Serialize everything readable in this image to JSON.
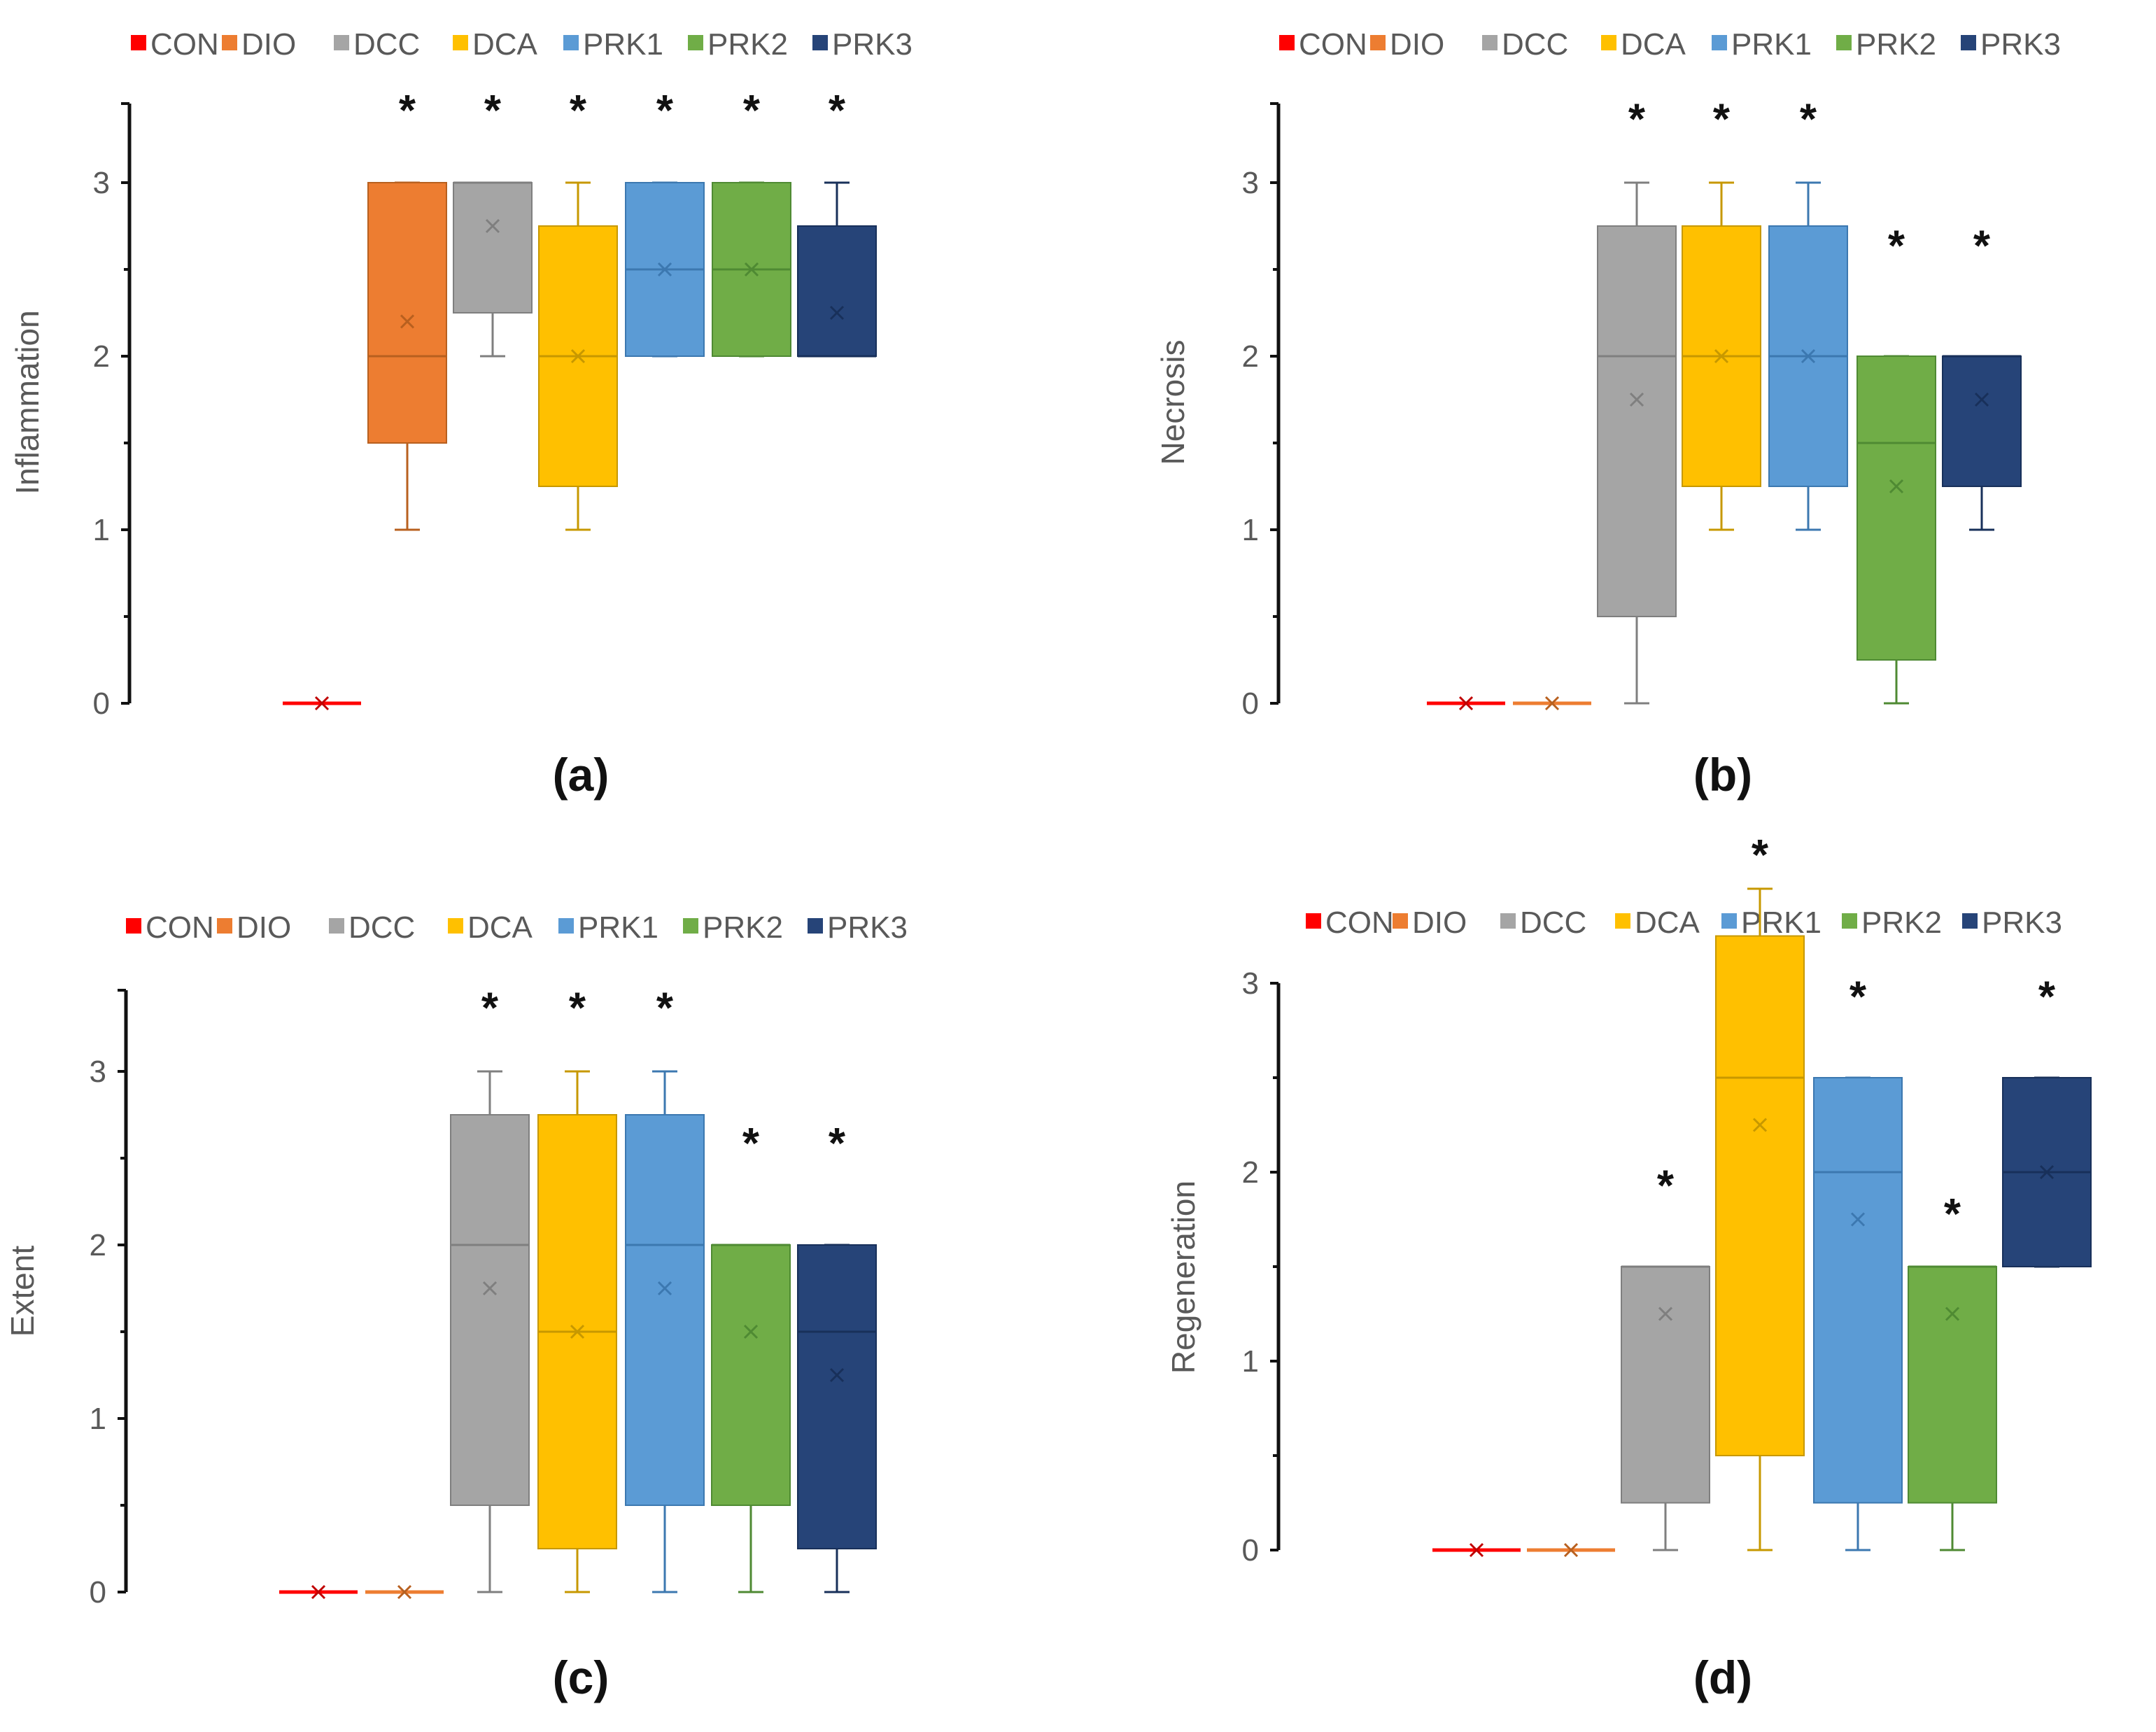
{
  "legend": {
    "groups": [
      "CON",
      "DIO",
      "DCC",
      "DCA",
      "PRK1",
      "PRK2",
      "PRK3"
    ],
    "colors": [
      "#ff0000",
      "#ed7d31",
      "#a5a5a5",
      "#ffc000",
      "#5b9bd5",
      "#70ad47",
      "#264478"
    ]
  },
  "chart_data": [
    {
      "type": "box",
      "panel": "(a)",
      "ylabel": "Inflammation",
      "ylim": [
        0,
        3.5
      ],
      "yticks": [
        0,
        1,
        2,
        3
      ],
      "categories": [
        "CON",
        "DIO",
        "DCC",
        "DCA",
        "PRK1",
        "PRK2",
        "PRK3"
      ],
      "boxes": [
        {
          "group": "CON",
          "min": 0,
          "q1": 0,
          "median": 0,
          "q3": 0,
          "max": 0,
          "mean": 0
        },
        {
          "group": "DIO",
          "min": 1,
          "q1": 1.5,
          "median": 2,
          "q3": 3,
          "max": 3,
          "mean": 2.2
        },
        {
          "group": "DCC",
          "min": 2,
          "q1": 2.25,
          "median": 3,
          "q3": 3,
          "max": 3,
          "mean": 2.75
        },
        {
          "group": "DCA",
          "min": 1,
          "q1": 1.25,
          "median": 2,
          "q3": 2.75,
          "max": 3,
          "mean": 2.0
        },
        {
          "group": "PRK1",
          "min": 2,
          "q1": 2,
          "median": 2.5,
          "q3": 3,
          "max": 3,
          "mean": 2.5
        },
        {
          "group": "PRK2",
          "min": 2,
          "q1": 2,
          "median": 2.5,
          "q3": 3,
          "max": 3,
          "mean": 2.5
        },
        {
          "group": "PRK3",
          "min": 2,
          "q1": 2,
          "median": 2,
          "q3": 2.75,
          "max": 3,
          "mean": 2.25
        }
      ],
      "significance": [
        "",
        "*",
        "*",
        "*",
        "*",
        "*",
        "*"
      ],
      "star_level": [
        null,
        3.33,
        3.33,
        3.33,
        3.33,
        3.33,
        3.33
      ]
    },
    {
      "type": "box",
      "panel": "(b)",
      "ylabel": "Necrosis",
      "ylim": [
        0,
        3.5
      ],
      "yticks": [
        0,
        1,
        2,
        3
      ],
      "categories": [
        "CON",
        "DIO",
        "DCC",
        "DCA",
        "PRK1",
        "PRK2",
        "PRK3"
      ],
      "boxes": [
        {
          "group": "CON",
          "min": 0,
          "q1": 0,
          "median": 0,
          "q3": 0,
          "max": 0,
          "mean": 0
        },
        {
          "group": "DIO",
          "min": 0,
          "q1": 0,
          "median": 0,
          "q3": 0,
          "max": 0,
          "mean": 0
        },
        {
          "group": "DCC",
          "min": 0,
          "q1": 0.5,
          "median": 2,
          "q3": 2.75,
          "max": 3,
          "mean": 1.75
        },
        {
          "group": "DCA",
          "min": 1,
          "q1": 1.25,
          "median": 2,
          "q3": 2.75,
          "max": 3,
          "mean": 2.0
        },
        {
          "group": "PRK1",
          "min": 1,
          "q1": 1.25,
          "median": 2,
          "q3": 2.75,
          "max": 3,
          "mean": 2.0
        },
        {
          "group": "PRK2",
          "min": 0,
          "q1": 0.25,
          "median": 1.5,
          "q3": 2,
          "max": 2,
          "mean": 1.25
        },
        {
          "group": "PRK3",
          "min": 1,
          "q1": 1.25,
          "median": 2,
          "q3": 2,
          "max": 2,
          "mean": 1.75
        }
      ],
      "significance": [
        "",
        "",
        "*",
        "*",
        "*",
        "*",
        "*"
      ],
      "star_level": [
        null,
        null,
        3.28,
        3.28,
        3.28,
        2.55,
        2.55
      ]
    },
    {
      "type": "box",
      "panel": "(c)",
      "ylabel": "Extent",
      "ylim": [
        0,
        3.5
      ],
      "yticks": [
        0,
        1,
        2,
        3
      ],
      "categories": [
        "CON",
        "DIO",
        "DCC",
        "DCA",
        "PRK1",
        "PRK2",
        "PRK3"
      ],
      "boxes": [
        {
          "group": "CON",
          "min": 0,
          "q1": 0,
          "median": 0,
          "q3": 0,
          "max": 0,
          "mean": 0
        },
        {
          "group": "DIO",
          "min": 0,
          "q1": 0,
          "median": 0,
          "q3": 0,
          "max": 0,
          "mean": 0
        },
        {
          "group": "DCC",
          "min": 0,
          "q1": 0.5,
          "median": 2,
          "q3": 2.75,
          "max": 3,
          "mean": 1.75
        },
        {
          "group": "DCA",
          "min": 0,
          "q1": 0.25,
          "median": 1.5,
          "q3": 2.75,
          "max": 3,
          "mean": 1.5
        },
        {
          "group": "PRK1",
          "min": 0,
          "q1": 0.5,
          "median": 2,
          "q3": 2.75,
          "max": 3,
          "mean": 1.75
        },
        {
          "group": "PRK2",
          "min": 0,
          "q1": 0.5,
          "median": 2,
          "q3": 2,
          "max": 2,
          "mean": 1.5
        },
        {
          "group": "PRK3",
          "min": 0,
          "q1": 0.25,
          "median": 1.5,
          "q3": 2,
          "max": 2,
          "mean": 1.25
        }
      ],
      "significance": [
        "",
        "",
        "*",
        "*",
        "*",
        "*",
        "*"
      ],
      "star_level": [
        null,
        null,
        3.28,
        3.28,
        3.28,
        2.5,
        2.5
      ]
    },
    {
      "type": "box",
      "panel": "(d)",
      "ylabel": "Regeneration",
      "ylim": [
        0,
        3.5
      ],
      "yticks": [
        0,
        1,
        2,
        3
      ],
      "categories": [
        "CON",
        "DIO",
        "DCC",
        "DCA",
        "PRK1",
        "PRK2",
        "PRK3"
      ],
      "boxes": [
        {
          "group": "CON",
          "min": 0,
          "q1": 0,
          "median": 0,
          "q3": 0,
          "max": 0,
          "mean": 0
        },
        {
          "group": "DIO",
          "min": 0,
          "q1": 0,
          "median": 0,
          "q3": 0,
          "max": 0,
          "mean": 0
        },
        {
          "group": "DCC",
          "min": 0,
          "q1": 0.25,
          "median": 1.5,
          "q3": 1.5,
          "max": 1.5,
          "mean": 1.25
        },
        {
          "group": "DCA",
          "min": 0,
          "q1": 0.5,
          "median": 2.5,
          "q3": 3.25,
          "max": 3.5,
          "mean": 2.25
        },
        {
          "group": "PRK1",
          "min": 0,
          "q1": 0.25,
          "median": 2,
          "q3": 2.5,
          "max": 2.5,
          "mean": 1.75
        },
        {
          "group": "PRK2",
          "min": 0,
          "q1": 0.25,
          "median": 1.5,
          "q3": 1.5,
          "max": 1.5,
          "mean": 1.25
        },
        {
          "group": "PRK3",
          "min": 1.5,
          "q1": 1.5,
          "median": 2,
          "q3": 2.5,
          "max": 2.5,
          "mean": 2.0
        }
      ],
      "significance": [
        "",
        "",
        "*",
        "*",
        "*",
        "*",
        "*"
      ],
      "star_level": [
        null,
        null,
        1.85,
        3.6,
        2.85,
        1.7,
        2.85
      ]
    }
  ]
}
